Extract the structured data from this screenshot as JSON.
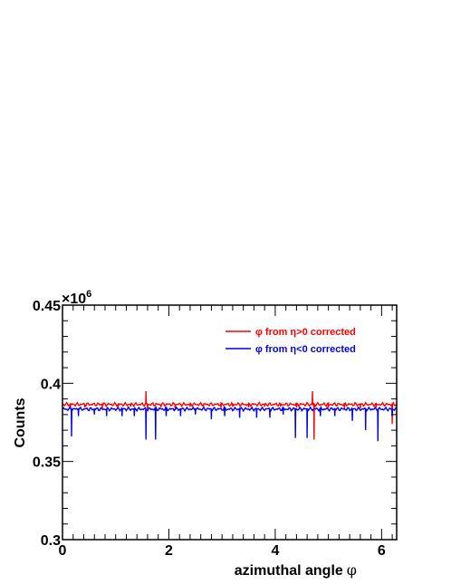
{
  "chart_data": {
    "type": "line",
    "xlabel": "azimuthal angle",
    "xlabel_symbol": "φ",
    "ylabel": "Counts",
    "y_exponent_label": "×10",
    "y_exponent_power": "6",
    "xlim": [
      0,
      6.2832
    ],
    "ylim": [
      0.3,
      0.45
    ],
    "x_ticks": [
      0,
      2,
      4,
      6
    ],
    "x_tick_labels": [
      "0",
      "2",
      "4",
      "6"
    ],
    "y_ticks": [
      0.3,
      0.35,
      0.4,
      0.45
    ],
    "y_tick_labels": [
      "0.3",
      "0.35",
      "0.4",
      "0.45"
    ],
    "grid": false,
    "legend_position": "top-right",
    "series": [
      {
        "name": "φ from η>0 corrected",
        "color": "#ff0000",
        "baseline": 0.3865,
        "features": [
          {
            "x": 0.15,
            "y": 0.3845
          },
          {
            "x": 0.42,
            "y": 0.3845
          },
          {
            "x": 0.75,
            "y": 0.384
          },
          {
            "x": 1.05,
            "y": 0.385
          },
          {
            "x": 1.28,
            "y": 0.385
          },
          {
            "x": 1.57,
            "y": 0.395
          },
          {
            "x": 1.6,
            "y": 0.383
          },
          {
            "x": 1.85,
            "y": 0.3845
          },
          {
            "x": 2.12,
            "y": 0.383
          },
          {
            "x": 2.4,
            "y": 0.385
          },
          {
            "x": 2.65,
            "y": 0.385
          },
          {
            "x": 2.98,
            "y": 0.3845
          },
          {
            "x": 3.2,
            "y": 0.385
          },
          {
            "x": 3.5,
            "y": 0.3845
          },
          {
            "x": 3.8,
            "y": 0.385
          },
          {
            "x": 4.1,
            "y": 0.385
          },
          {
            "x": 4.4,
            "y": 0.3845
          },
          {
            "x": 4.7,
            "y": 0.395
          },
          {
            "x": 4.73,
            "y": 0.364
          },
          {
            "x": 5.0,
            "y": 0.3845
          },
          {
            "x": 5.3,
            "y": 0.384
          },
          {
            "x": 5.6,
            "y": 0.384
          },
          {
            "x": 5.9,
            "y": 0.3845
          },
          {
            "x": 6.2,
            "y": 0.374
          }
        ]
      },
      {
        "name": "φ from η<0 corrected",
        "color": "#0000ee",
        "baseline": 0.3835,
        "features": [
          {
            "x": 0.17,
            "y": 0.366
          },
          {
            "x": 0.3,
            "y": 0.379
          },
          {
            "x": 0.6,
            "y": 0.38
          },
          {
            "x": 0.83,
            "y": 0.379
          },
          {
            "x": 1.12,
            "y": 0.379
          },
          {
            "x": 1.35,
            "y": 0.379
          },
          {
            "x": 1.57,
            "y": 0.364
          },
          {
            "x": 1.75,
            "y": 0.364
          },
          {
            "x": 1.95,
            "y": 0.379
          },
          {
            "x": 2.22,
            "y": 0.379
          },
          {
            "x": 2.5,
            "y": 0.38
          },
          {
            "x": 2.8,
            "y": 0.377
          },
          {
            "x": 3.05,
            "y": 0.379
          },
          {
            "x": 3.33,
            "y": 0.378
          },
          {
            "x": 3.65,
            "y": 0.378
          },
          {
            "x": 3.9,
            "y": 0.378
          },
          {
            "x": 4.15,
            "y": 0.38
          },
          {
            "x": 4.38,
            "y": 0.365
          },
          {
            "x": 4.6,
            "y": 0.365
          },
          {
            "x": 4.85,
            "y": 0.379
          },
          {
            "x": 5.12,
            "y": 0.379
          },
          {
            "x": 5.45,
            "y": 0.376
          },
          {
            "x": 5.7,
            "y": 0.37
          },
          {
            "x": 5.93,
            "y": 0.363
          },
          {
            "x": 6.2,
            "y": 0.379
          }
        ]
      }
    ]
  }
}
